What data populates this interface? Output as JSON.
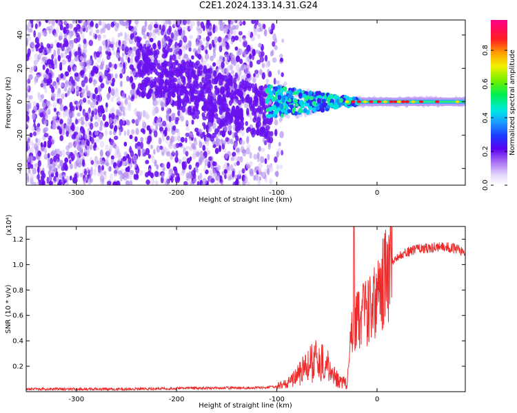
{
  "title": "C2E1.2024.133.14.31.G24",
  "colors": {
    "spectrogram_low": "#b18cf0",
    "spectrogram_mid": "#6a12ee",
    "spectrogram_high": "#ff1020",
    "snr_line": "#ee2b2b"
  },
  "chart_data": [
    {
      "type": "heatmap",
      "title": "",
      "xlabel": "Height of straight line (km)",
      "ylabel": "Frequency (Hz)",
      "xlim": [
        -350,
        88
      ],
      "ylim": [
        -50,
        49
      ],
      "xticks": [
        -300,
        -200,
        -100,
        0
      ],
      "yticks": [
        -40,
        -20,
        0,
        20,
        40
      ],
      "grid": false,
      "features": {
        "broadband_noise_region_km": [
          -350,
          -100
        ],
        "carrier_trace_start_km": -110,
        "carrier_trace_frequency_hz": 0
      },
      "colorbar": {
        "label": "Normalized spectral amplitude",
        "range": [
          0.0,
          0.98
        ],
        "ticks": [
          0.0,
          0.2,
          0.4,
          0.6,
          0.8
        ],
        "tick_labels": [
          "0.0",
          "0.2",
          "0.4",
          "0.6",
          "0.8"
        ],
        "colormap": "rainbow (white-purple-blue-cyan-green-yellow-red-magenta)"
      }
    },
    {
      "type": "line",
      "title": "",
      "xlabel": "Height of straight line (km)",
      "ylabel": "SNR (10 * v/v)",
      "y_multiplier": "(x10⁴)",
      "xlim": [
        -350,
        88
      ],
      "ylim": [
        0,
        1.3
      ],
      "xticks": [
        -300,
        -200,
        -100,
        0
      ],
      "yticks": [
        0.2,
        0.4,
        0.6,
        0.8,
        1.0,
        1.2
      ],
      "ytick_labels": [
        "0.2",
        "0.4",
        "0.6",
        "0.8",
        "1.0",
        "1.2"
      ],
      "grid": false,
      "series": [
        {
          "name": "",
          "x": [
            -350,
            -300,
            -250,
            -200,
            -150,
            -120,
            -100,
            -90,
            -80,
            -70,
            -60,
            -50,
            -40,
            -30,
            -25,
            -20,
            -15,
            -10,
            -5,
            0,
            5,
            10,
            15,
            20,
            30,
            40,
            50,
            60,
            70,
            80,
            88
          ],
          "y": [
            0.02,
            0.02,
            0.02,
            0.025,
            0.03,
            0.03,
            0.04,
            0.06,
            0.12,
            0.2,
            0.25,
            0.2,
            0.1,
            0.06,
            0.5,
            0.55,
            0.6,
            0.6,
            0.65,
            0.72,
            0.85,
            0.95,
            1.02,
            1.07,
            1.1,
            1.12,
            1.13,
            1.14,
            1.14,
            1.12,
            1.1
          ]
        }
      ]
    }
  ]
}
